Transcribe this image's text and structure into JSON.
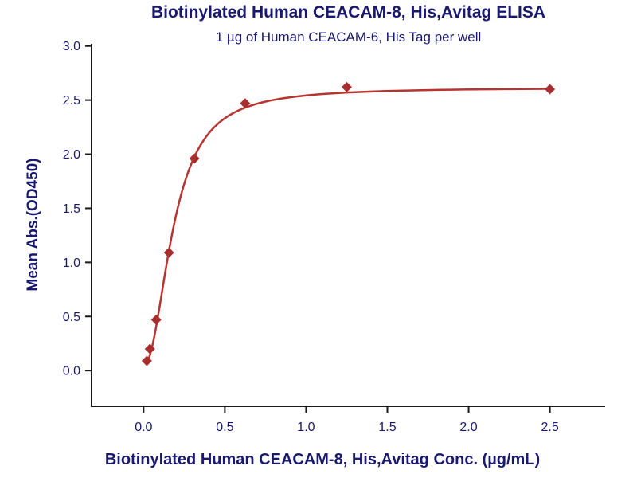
{
  "title": "Biotinylated Human CEACAM-8, His,Avitag ELISA",
  "subtitle": "1 µg of Human CEACAM-6, His Tag per well",
  "x_axis_label": "Biotinylated Human CEACAM-8, His,Avitag Conc. (µg/mL)",
  "y_axis_label": "Mean Abs.(OD450)",
  "colors": {
    "title_text": "#191970",
    "tick_text": "#191970",
    "axis_line": "#1a1a1a",
    "curve_red": "#b63531",
    "marker_red": "#a82e2d",
    "background": "#ffffff"
  },
  "chart_data": {
    "type": "scatter",
    "title": "Biotinylated Human CEACAM-8, His,Avitag ELISA",
    "subtitle": "1 µg of Human CEACAM-6, His Tag per well",
    "xlabel": "Biotinylated Human CEACAM-8, His,Avitag Conc. (µg/mL)",
    "ylabel": "Mean Abs.(OD450)",
    "x": [
      0.02,
      0.039,
      0.078,
      0.156,
      0.313,
      0.625,
      1.25,
      2.5
    ],
    "y": [
      0.09,
      0.2,
      0.47,
      1.09,
      1.96,
      2.47,
      2.62,
      2.6
    ],
    "fit": {
      "model": "4PL",
      "a": 0.05,
      "d": 2.615,
      "c": 0.185,
      "b": 2.1
    },
    "x_ticks": [
      0.0,
      0.5,
      1.0,
      1.5,
      2.0,
      2.5
    ],
    "y_ticks": [
      0.0,
      0.5,
      1.0,
      1.5,
      2.0,
      2.5,
      3.0
    ],
    "xlim": [
      -0.32,
      2.84
    ],
    "ylim": [
      -0.33,
      3.02
    ],
    "grid": false,
    "legend": "none"
  }
}
